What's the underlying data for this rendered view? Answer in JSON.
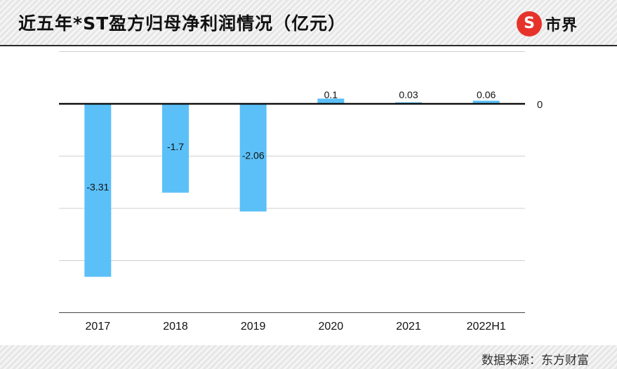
{
  "header": {
    "title": "近五年*ST盈方归母净利润情况（亿元）",
    "logo_symbol": "S",
    "logo_text": "市界"
  },
  "footer": {
    "source": "数据来源：东方财富"
  },
  "colors": {
    "bar": "#5bc0f8",
    "axis": "#111111",
    "grid": "#d0d0d0",
    "brand_red": "#e6322b"
  },
  "chart_data": {
    "type": "bar",
    "categories": [
      "2017",
      "2018",
      "2019",
      "2020",
      "2021",
      "2022H1"
    ],
    "values": [
      -3.31,
      -1.7,
      -2.06,
      0.1,
      0.03,
      0.06
    ],
    "data_labels": [
      "-3.31",
      "-1.7",
      "-2.06",
      "0.1",
      "0.03",
      "0.06"
    ],
    "title": "近五年*ST盈方归母净利润情况（亿元）",
    "xlabel": "",
    "ylabel": "",
    "ylim": [
      -4,
      1
    ],
    "ytick_labels": [
      "0"
    ],
    "grid": true,
    "legend": "none"
  }
}
